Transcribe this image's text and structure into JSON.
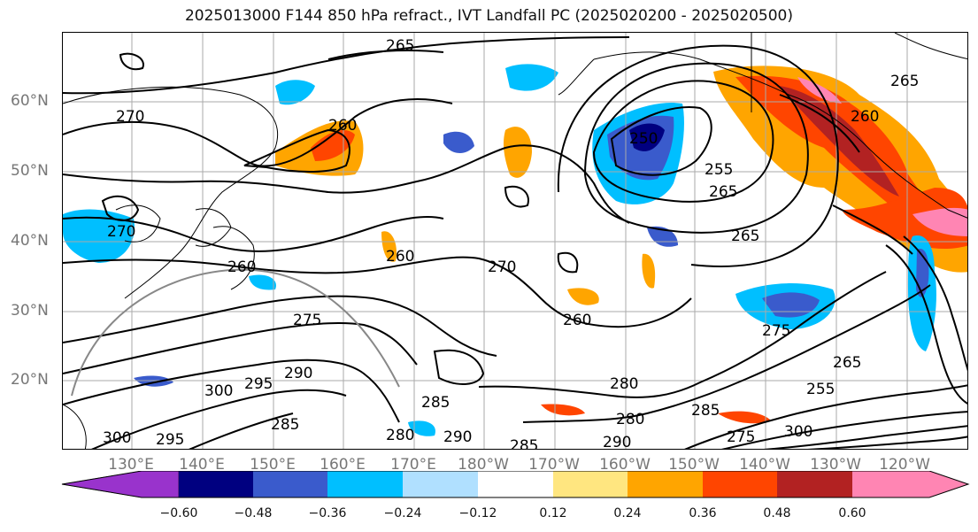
{
  "title": "2025013000 F144 850 hPa refract., IVT Landfall PC (2025020200 - 2025020500)",
  "lat_labels": [
    "60°N",
    "50°N",
    "40°N",
    "30°N",
    "20°N"
  ],
  "lon_labels": [
    "130°E",
    "140°E",
    "150°E",
    "160°E",
    "170°E",
    "180°W",
    "170°W",
    "160°W",
    "150°W",
    "140°W",
    "130°W",
    "120°W"
  ],
  "colorbar": {
    "ticks": [
      "−0.60",
      "−0.48",
      "−0.36",
      "−0.24",
      "−0.12",
      "0.12",
      "0.24",
      "0.36",
      "0.48",
      "0.60"
    ],
    "colors": [
      "#9933cc",
      "#000080",
      "#3a5bcc",
      "#00bfff",
      "#b0e0ff",
      "#ffffff",
      "#ffe680",
      "#ffa500",
      "#ff4500",
      "#b22222",
      "#ff85b3"
    ]
  },
  "contour_labels": [
    "265",
    "270",
    "260",
    "250",
    "255",
    "265",
    "265",
    "260",
    "270",
    "260",
    "260",
    "275",
    "270",
    "290",
    "295",
    "300",
    "285",
    "295",
    "300",
    "285",
    "280",
    "290",
    "285",
    "280",
    "280",
    "290",
    "285",
    "275",
    "300",
    "255",
    "265",
    "265",
    "260",
    "275"
  ]
}
